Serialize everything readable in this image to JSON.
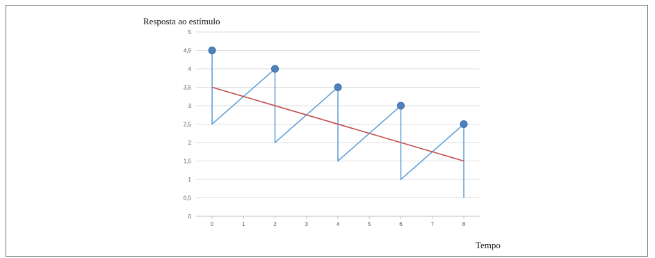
{
  "chart_data": {
    "type": "line",
    "title": "",
    "ylabel": "Resposta ao estímulo",
    "xlabel": "Tempo",
    "xlim": [
      0,
      8
    ],
    "ylim": [
      0,
      5
    ],
    "x_ticks": [
      0,
      1,
      2,
      3,
      4,
      5,
      6,
      7,
      8
    ],
    "y_ticks": [
      0,
      0.5,
      1,
      1.5,
      2,
      2.5,
      3,
      3.5,
      4,
      4.5,
      5
    ],
    "y_tick_labels": [
      "0",
      "0,5",
      "1",
      "1,5",
      "2",
      "2,5",
      "3",
      "3,5",
      "4",
      "4,5",
      "5"
    ],
    "grid": "horizontal",
    "legend": "none",
    "series": [
      {
        "type": "line",
        "color": "#5b9bd5",
        "points": [
          [
            0,
            4.5
          ],
          [
            0,
            2.5
          ],
          [
            2,
            4
          ],
          [
            2,
            2
          ],
          [
            4,
            3.5
          ],
          [
            4,
            1.5
          ],
          [
            6,
            3
          ],
          [
            6,
            1
          ],
          [
            8,
            2.5
          ],
          [
            8,
            0.5
          ]
        ]
      },
      {
        "type": "line",
        "color": "#c0504d",
        "points": [
          [
            0,
            3.5
          ],
          [
            8,
            1.5
          ]
        ]
      },
      {
        "type": "scatter",
        "color": "#4f81bd",
        "points": [
          [
            0,
            4.5
          ],
          [
            2,
            4
          ],
          [
            4,
            3.5
          ],
          [
            6,
            3
          ],
          [
            8,
            2.5
          ]
        ]
      }
    ]
  }
}
